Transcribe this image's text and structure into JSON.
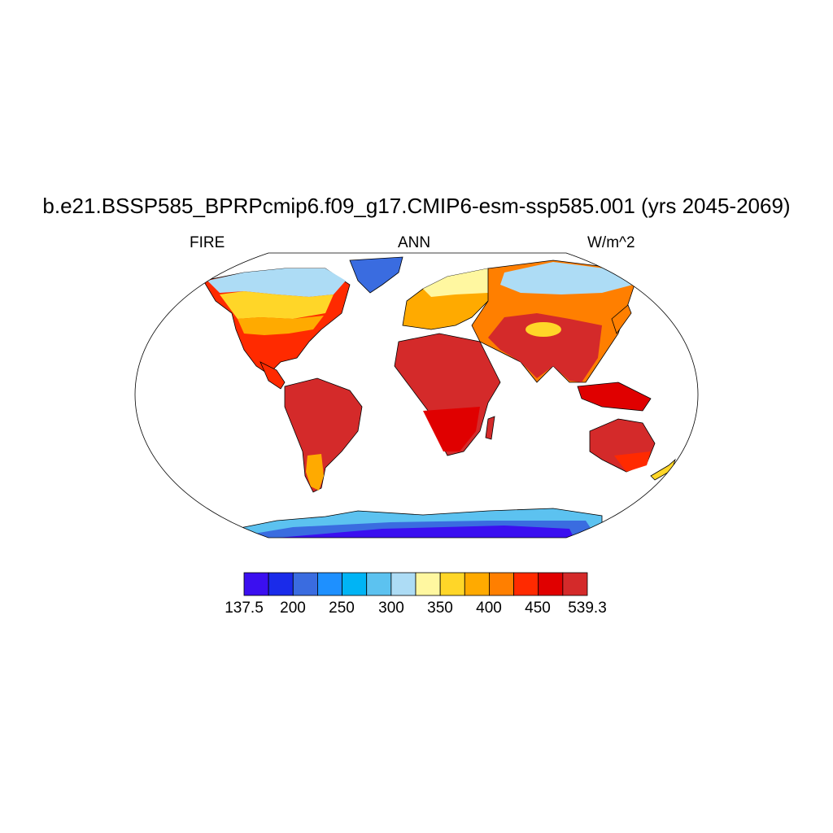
{
  "title": "b.e21.BSSP585_BPRPcmip6.f09_g17.CMIP6-esm-ssp585.001 (yrs 2045-2069)",
  "left_string": "FIRE",
  "center_string": "ANN",
  "right_string": "W/m^2",
  "colorbar": {
    "colors": [
      "#3b0ff0",
      "#1a2bea",
      "#3a6ce0",
      "#1e90ff",
      "#00b4f5",
      "#5cc2f0",
      "#addcf5",
      "#fff7a0",
      "#ffd628",
      "#ffaa00",
      "#ff7f00",
      "#ff2a00",
      "#e00000",
      "#d42a2a"
    ],
    "labels": [
      "137.5",
      "200",
      "250",
      "300",
      "350",
      "400",
      "450",
      "539.3"
    ]
  }
}
